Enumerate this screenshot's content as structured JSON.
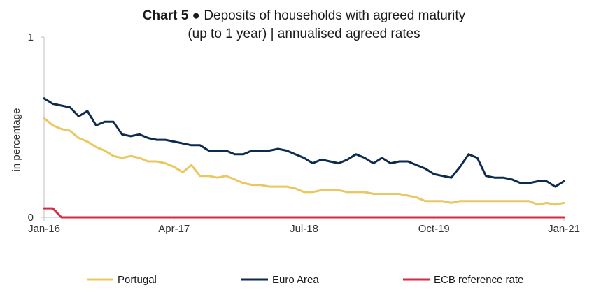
{
  "chart_data": {
    "type": "line",
    "title_prefix": "Chart 5",
    "title_bullet": "●",
    "title_main": "Deposits of households with agreed maturity",
    "subtitle": "(up to 1 year) | annualised agreed rates",
    "ylabel": "in percentage",
    "xlabel": "",
    "ylim": [
      0,
      1
    ],
    "yticks": [
      "0",
      "1"
    ],
    "x_tick_labels": [
      "Jan-16",
      "Apr-17",
      "Jul-18",
      "Oct-19",
      "Jan-21"
    ],
    "x_tick_index": [
      0,
      15,
      30,
      45,
      60
    ],
    "x_range": "Jan-16 to Jan-21 (monthly, 61 points)",
    "grid": false,
    "legend_position": "bottom",
    "series": [
      {
        "name": "Portugal",
        "color": "#ebc761",
        "values": [
          0.55,
          0.51,
          0.49,
          0.48,
          0.44,
          0.42,
          0.39,
          0.37,
          0.34,
          0.33,
          0.34,
          0.33,
          0.31,
          0.31,
          0.3,
          0.28,
          0.25,
          0.29,
          0.23,
          0.23,
          0.22,
          0.23,
          0.21,
          0.19,
          0.18,
          0.18,
          0.17,
          0.17,
          0.17,
          0.16,
          0.14,
          0.14,
          0.15,
          0.15,
          0.15,
          0.14,
          0.14,
          0.14,
          0.13,
          0.13,
          0.13,
          0.13,
          0.12,
          0.11,
          0.09,
          0.09,
          0.09,
          0.08,
          0.09,
          0.09,
          0.09,
          0.09,
          0.09,
          0.09,
          0.09,
          0.09,
          0.09,
          0.07,
          0.08,
          0.07,
          0.08
        ]
      },
      {
        "name": "Euro Area",
        "color": "#0d2b4e",
        "values": [
          0.66,
          0.63,
          0.62,
          0.61,
          0.56,
          0.59,
          0.51,
          0.53,
          0.53,
          0.46,
          0.45,
          0.46,
          0.44,
          0.43,
          0.43,
          0.42,
          0.41,
          0.4,
          0.4,
          0.37,
          0.37,
          0.37,
          0.35,
          0.35,
          0.37,
          0.37,
          0.37,
          0.38,
          0.37,
          0.35,
          0.33,
          0.3,
          0.32,
          0.31,
          0.3,
          0.32,
          0.35,
          0.33,
          0.3,
          0.33,
          0.3,
          0.31,
          0.31,
          0.29,
          0.27,
          0.24,
          0.23,
          0.22,
          0.28,
          0.35,
          0.33,
          0.23,
          0.22,
          0.22,
          0.21,
          0.19,
          0.19,
          0.2,
          0.2,
          0.17,
          0.2
        ]
      },
      {
        "name": "ECB reference rate",
        "color": "#d32a46",
        "values": [
          0.05,
          0.05,
          0.0,
          0.0,
          0.0,
          0.0,
          0.0,
          0.0,
          0.0,
          0.0,
          0.0,
          0.0,
          0.0,
          0.0,
          0.0,
          0.0,
          0.0,
          0.0,
          0.0,
          0.0,
          0.0,
          0.0,
          0.0,
          0.0,
          0.0,
          0.0,
          0.0,
          0.0,
          0.0,
          0.0,
          0.0,
          0.0,
          0.0,
          0.0,
          0.0,
          0.0,
          0.0,
          0.0,
          0.0,
          0.0,
          0.0,
          0.0,
          0.0,
          0.0,
          0.0,
          0.0,
          0.0,
          0.0,
          0.0,
          0.0,
          0.0,
          0.0,
          0.0,
          0.0,
          0.0,
          0.0,
          0.0,
          0.0,
          0.0,
          0.0,
          0.0
        ]
      }
    ]
  }
}
